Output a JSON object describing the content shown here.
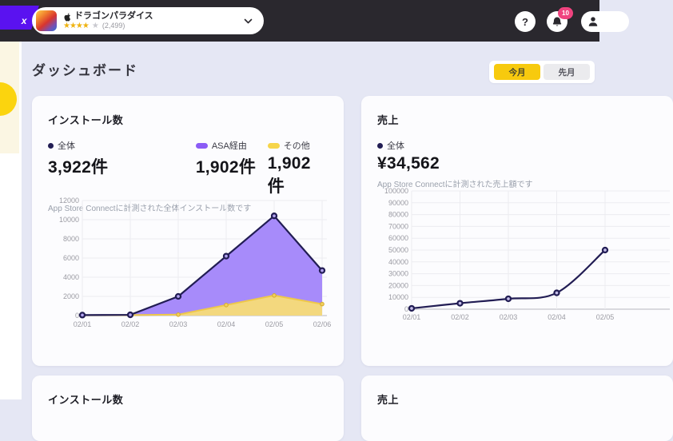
{
  "topbar": {
    "logo_text": "x",
    "app_selector": {
      "app_name": "ドラゴンパラダイス",
      "stars_filled": "★★★★",
      "stars_empty": "★",
      "rating_count": "(2,499)"
    },
    "help_label": "?",
    "notification_badge": "10"
  },
  "header": {
    "title": "ダッシュボード",
    "period_active": "今月",
    "period_inactive": "先月"
  },
  "colors": {
    "accent_yellow": "#f7ca0e",
    "accent_purple": "#8b5cf6",
    "navy": "#221d54",
    "badge_pink": "#f0437f",
    "logo_violet": "#5a12f0"
  },
  "cards": {
    "installs": {
      "title": "インストール数",
      "stats": [
        {
          "label": "全体",
          "value": "3,922件",
          "marker_color": "#221d54"
        },
        {
          "label": "ASA経由",
          "value": "1,902件",
          "marker_color": "#8b5cf6"
        },
        {
          "label": "その他",
          "value": "1,902件",
          "marker_color": "#f6d54a"
        }
      ],
      "description": "App Store Connectに計測された全体インストール数です"
    },
    "sales": {
      "title": "売上",
      "stats": [
        {
          "label": "全体",
          "value": "¥34,562",
          "marker_color": "#221d54"
        }
      ],
      "description": "App Store Connectに計測された売上額です"
    },
    "row2": [
      {
        "title": "インストール数"
      },
      {
        "title": "売上"
      }
    ]
  },
  "chart_data": [
    {
      "type": "area",
      "title": "インストール数",
      "categories": [
        "02/01",
        "02/02",
        "02/03",
        "02/04",
        "02/05",
        "02/06"
      ],
      "series": [
        {
          "name": "全体",
          "values": [
            50,
            80,
            2000,
            6200,
            10400,
            4700
          ],
          "color": "#221d54",
          "render": "line-with-markers"
        },
        {
          "name": "ASA経由",
          "values": [
            20,
            30,
            1900,
            5100,
            8300,
            3500
          ],
          "color": "#a78bfa",
          "render": "stacked-area"
        },
        {
          "name": "その他",
          "values": [
            30,
            50,
            100,
            1100,
            2100,
            1200
          ],
          "color": "#f3d87e",
          "render": "stacked-area"
        }
      ],
      "ylim": [
        0,
        12000
      ],
      "ytick_step": 2000,
      "grid": true,
      "legend_position": "top-stats"
    },
    {
      "type": "line",
      "title": "売上",
      "categories": [
        "02/01",
        "02/02",
        "02/03",
        "02/04",
        "02/05"
      ],
      "series": [
        {
          "name": "全体",
          "values": [
            700,
            5000,
            8800,
            13800,
            50000
          ],
          "color": "#221d54"
        }
      ],
      "ylim": [
        0,
        100000
      ],
      "ytick_step": 10000,
      "grid": true,
      "smooth": true,
      "legend_position": "top-stats"
    }
  ]
}
